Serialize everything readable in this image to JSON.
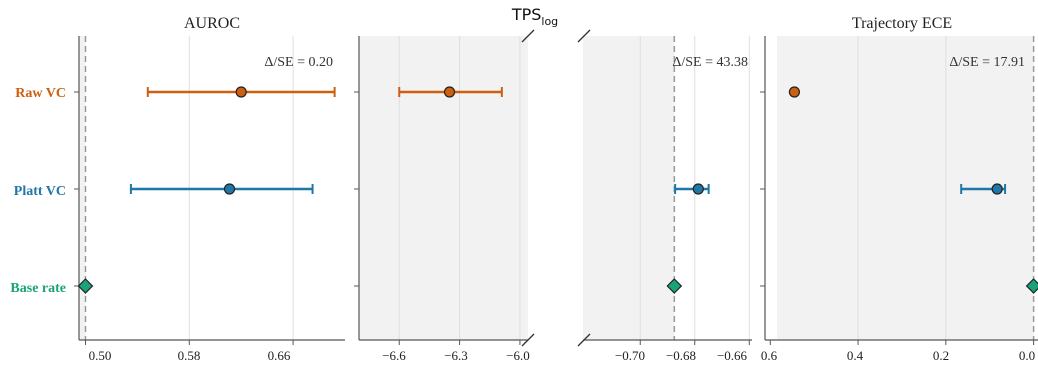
{
  "figure": {
    "middle_title_main": "TPS",
    "middle_title_sub": "log"
  },
  "colors": {
    "raw": "#cc6010",
    "platt": "#1f77a8",
    "base": "#1aa37a",
    "shade": "#f2f2f2",
    "grid": "#dedede",
    "ref": "#999999",
    "axis": "#555555",
    "text": "#222222"
  },
  "chart_data": [
    {
      "id": "auroc",
      "type": "scatter",
      "title": "AUROC",
      "annotation": "Δ/SE = 0.20",
      "categories": [
        "Raw VC",
        "Platt VC",
        "Base rate"
      ],
      "xlim": [
        0.495,
        0.7
      ],
      "xticks": [
        0.5,
        0.58,
        0.66
      ],
      "xticklabels": [
        "0.50",
        "0.58",
        "0.66"
      ],
      "grid_x": [
        0.58,
        0.66
      ],
      "reference_line": 0.5,
      "series": [
        {
          "name": "Raw VC",
          "marker": "circle",
          "x": 0.62,
          "ci": [
            0.548,
            0.692
          ]
        },
        {
          "name": "Platt VC",
          "marker": "circle",
          "x": 0.611,
          "ci": [
            0.535,
            0.675
          ]
        },
        {
          "name": "Base rate",
          "marker": "diamond",
          "x": 0.5
        }
      ]
    },
    {
      "id": "tps_left",
      "type": "scatter",
      "title": "",
      "xlim": [
        -6.8,
        -5.96
      ],
      "xticks": [
        -6.6,
        -6.3,
        -6.0
      ],
      "xticklabels": [
        "−6.6",
        "−6.3",
        "−6.0"
      ],
      "grid_x": [
        -6.6,
        -6.3,
        -6.0
      ],
      "series": [
        {
          "name": "Raw VC",
          "marker": "circle",
          "x": -6.35,
          "ci": [
            -6.6,
            -6.09
          ]
        }
      ]
    },
    {
      "id": "tps_right",
      "type": "scatter",
      "title": "",
      "annotation": "Δ/SE = 43.38",
      "xlim": [
        -0.721,
        -0.659
      ],
      "xticks": [
        -0.7,
        -0.68,
        -0.66
      ],
      "xticklabels": [
        "−0.70",
        "−0.68",
        "−0.66"
      ],
      "grid_x": [
        -0.7,
        -0.68,
        -0.66
      ],
      "reference_line": -0.6875,
      "series": [
        {
          "name": "Platt VC",
          "marker": "circle",
          "x": -0.6787,
          "ci": [
            -0.6872,
            -0.6749
          ]
        },
        {
          "name": "Base rate",
          "marker": "diamond",
          "x": -0.6875
        }
      ]
    },
    {
      "id": "ece",
      "type": "scatter",
      "title": "Trajectory ECE",
      "annotation": "Δ/SE = 17.91",
      "xlim": [
        0.612,
        -0.01
      ],
      "xticks": [
        0.6,
        0.4,
        0.2,
        0.0
      ],
      "xticklabels": [
        "0.6",
        "0.4",
        "0.2",
        "0.0"
      ],
      "grid_x": [
        0.4,
        0.2
      ],
      "reference_line": 0.0,
      "series": [
        {
          "name": "Raw VC",
          "marker": "circle",
          "x": 0.545
        },
        {
          "name": "Platt VC",
          "marker": "circle",
          "x": 0.083,
          "ci": [
            0.165,
            0.065
          ]
        },
        {
          "name": "Base rate",
          "marker": "diamond",
          "x": 0.0
        }
      ]
    }
  ]
}
